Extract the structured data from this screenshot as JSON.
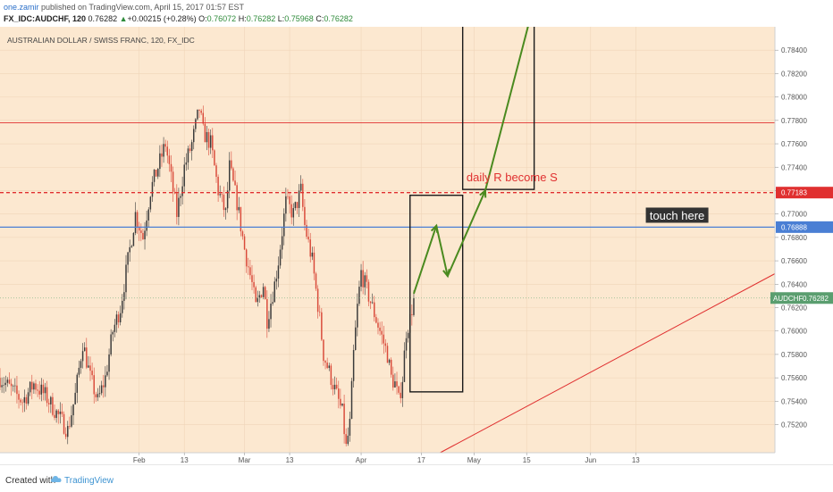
{
  "header": {
    "author": "one.zamir",
    "published": " published on TradingView.com, April 15, 2017 01:57 EST",
    "symbol_line": {
      "symbol": "FX_IDC:AUDCHF, 120",
      "last": "0.76282",
      "change_arrow": "▲",
      "change": "+0.00215 (+0.28%)",
      "o_label": "O:",
      "o": "0.76072",
      "h_label": "H:",
      "h": "0.76282",
      "l_label": "L:",
      "l": "0.75968",
      "c_label": "C:",
      "c": "0.76282"
    }
  },
  "footer": {
    "created_with": "Created with",
    "brand": "TradingView"
  },
  "colors": {
    "background": "#fce8d0",
    "candle_up": "#3a3a3a",
    "candle_down": "#d94a3a",
    "red_line": "#e03030",
    "blue_line": "#4a7fd4",
    "green_arrow": "#4a8a1f",
    "box": "#1a1a1a",
    "last_price_badge": "#5a9e6f",
    "res_badge": "#e03030",
    "blue_badge": "#4a7fd4"
  },
  "chart_data": {
    "type": "candlestick",
    "title": "AUSTRALIAN DOLLAR / SWISS FRANC, 120, FX_IDC",
    "ylim": [
      0.7496,
      0.786
    ],
    "y_ticks": [
      "0.75200",
      "0.75400",
      "0.75600",
      "0.75800",
      "0.76000",
      "0.76200",
      "0.76400",
      "0.76600",
      "0.76800",
      "0.77000",
      "0.77200",
      "0.77400",
      "0.77600",
      "0.77800",
      "0.78000",
      "0.78200",
      "0.78400"
    ],
    "y_tick_values": [
      0.752,
      0.754,
      0.756,
      0.758,
      0.76,
      0.762,
      0.764,
      0.766,
      0.768,
      0.77,
      0.772,
      0.774,
      0.776,
      0.778,
      0.78,
      0.782,
      0.784
    ],
    "x_ticks": [
      "Feb",
      "13",
      "Mar",
      "13",
      "Apr",
      "17",
      "May",
      "15",
      "Jun",
      "13"
    ],
    "x_tick_days": [
      31,
      43,
      59,
      71,
      90,
      106,
      120,
      134,
      151,
      163
    ],
    "xlim_days": [
      -6,
      200
    ],
    "last_bar_day": 104,
    "price_path": [
      [
        -6,
        0.756
      ],
      [
        -3,
        0.755
      ],
      [
        0,
        0.754
      ],
      [
        3,
        0.7555
      ],
      [
        6,
        0.7545
      ],
      [
        9,
        0.753
      ],
      [
        12,
        0.7515
      ],
      [
        14,
        0.7545
      ],
      [
        16,
        0.759
      ],
      [
        18,
        0.756
      ],
      [
        20,
        0.754
      ],
      [
        22,
        0.756
      ],
      [
        24,
        0.76
      ],
      [
        26,
        0.762
      ],
      [
        28,
        0.766
      ],
      [
        30,
        0.77
      ],
      [
        32,
        0.768
      ],
      [
        34,
        0.772
      ],
      [
        36,
        0.774
      ],
      [
        38,
        0.776
      ],
      [
        40,
        0.772
      ],
      [
        41,
        0.77
      ],
      [
        43,
        0.774
      ],
      [
        45,
        0.776
      ],
      [
        47,
        0.779
      ],
      [
        48,
        0.777
      ],
      [
        50,
        0.776
      ],
      [
        52,
        0.772
      ],
      [
        54,
        0.77
      ],
      [
        55,
        0.774
      ],
      [
        57,
        0.771
      ],
      [
        59,
        0.767
      ],
      [
        61,
        0.764
      ],
      [
        62,
        0.762
      ],
      [
        64,
        0.764
      ],
      [
        65,
        0.761
      ],
      [
        67,
        0.764
      ],
      [
        68,
        0.766
      ],
      [
        70,
        0.771
      ],
      [
        72,
        0.77
      ],
      [
        74,
        0.772
      ],
      [
        75,
        0.769
      ],
      [
        77,
        0.766
      ],
      [
        79,
        0.761
      ],
      [
        80,
        0.758
      ],
      [
        82,
        0.756
      ],
      [
        84,
        0.754
      ],
      [
        85,
        0.753
      ],
      [
        86,
        0.75
      ],
      [
        87,
        0.752
      ],
      [
        88,
        0.758
      ],
      [
        89,
        0.762
      ],
      [
        90,
        0.765
      ],
      [
        91,
        0.764
      ],
      [
        93,
        0.762
      ],
      [
        95,
        0.76
      ],
      [
        97,
        0.758
      ],
      [
        98,
        0.756
      ],
      [
        99,
        0.7555
      ],
      [
        100,
        0.754
      ],
      [
        101,
        0.756
      ],
      [
        102,
        0.76
      ],
      [
        103,
        0.761
      ],
      [
        104,
        0.76282
      ]
    ],
    "horizontal_lines": [
      {
        "price": 0.7778,
        "color": "red",
        "style": "solid"
      },
      {
        "price": 0.77183,
        "color": "red",
        "style": "dashed"
      },
      {
        "price": 0.76888,
        "color": "blue",
        "style": "solid"
      },
      {
        "price": 0.76282,
        "color": "green",
        "style": "dotted"
      }
    ],
    "price_badges": [
      {
        "label": "0.77183",
        "price": 0.77183,
        "kind": "res"
      },
      {
        "label": "0.76888",
        "price": 0.76888,
        "kind": "blue"
      },
      {
        "label": "AUDCHF",
        "value": "0.76282",
        "price": 0.76282,
        "kind": "last"
      }
    ],
    "trendline": {
      "from": [
        111,
        0.7496
      ],
      "to": [
        200,
        0.7649
      ]
    },
    "boxes": [
      {
        "d1": 103,
        "d2": 117,
        "p1": 0.7716,
        "p2": 0.7548
      },
      {
        "d1": 117,
        "d2": 136,
        "p1": 0.7872,
        "p2": 0.7721
      }
    ],
    "projection_path": [
      [
        104,
        0.7632
      ],
      [
        110,
        0.769
      ],
      [
        113,
        0.7647
      ],
      [
        123,
        0.772
      ],
      [
        135,
        0.7868
      ]
    ],
    "annotations": [
      {
        "text": "daily R become S",
        "day": 118,
        "price": 0.7728,
        "color": "red"
      },
      {
        "text": "touch here",
        "day": 174,
        "price": 0.7699,
        "boxed": true
      }
    ]
  }
}
